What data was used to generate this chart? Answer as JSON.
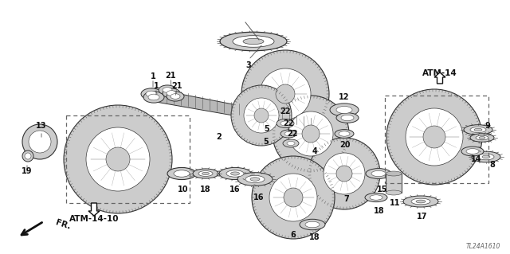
{
  "bg_color": "#ffffff",
  "diagram_code": "TL24A1610",
  "fig_width": 6.4,
  "fig_height": 3.19,
  "parts_color": "#111111",
  "gear_fill": "#cccccc",
  "gear_hatch": "#888888",
  "gear_edge": "#333333",
  "atm14_label": "ATM-14",
  "atm1410_label": "ATM-14-10",
  "fr_label": "FR."
}
